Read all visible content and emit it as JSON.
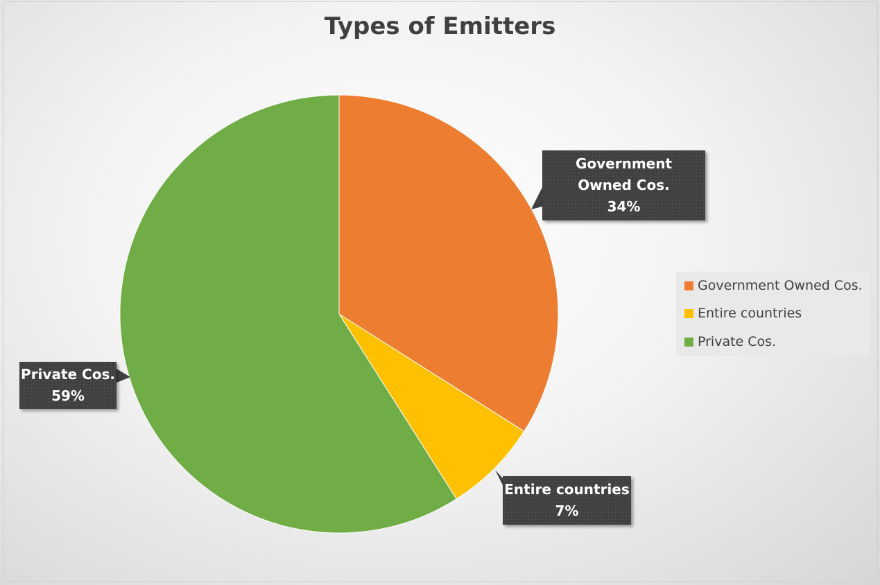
{
  "chart_data": {
    "type": "pie",
    "title": "Types of Emitters",
    "categories": [
      "Government Owned Cos.",
      "Entire countries",
      "Private Cos."
    ],
    "values": [
      34,
      7,
      59
    ],
    "value_labels": [
      "34%",
      "7%",
      "59%"
    ],
    "colors": [
      "#ED7D31",
      "#FFC000",
      "#70AD47"
    ],
    "start_angle": "12 o'clock, clockwise",
    "legend_position": "right"
  }
}
